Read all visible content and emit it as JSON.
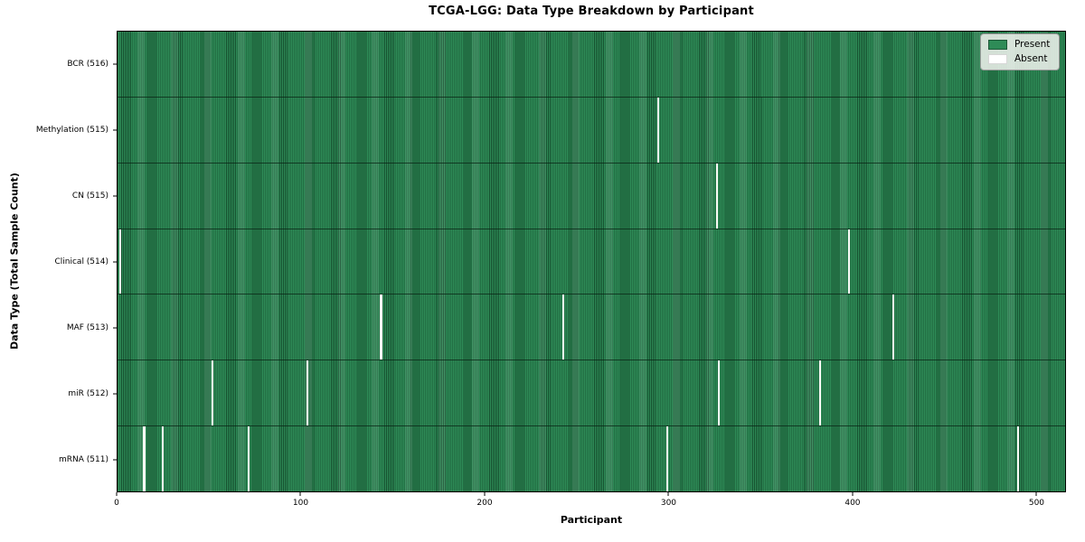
{
  "chart_data": {
    "type": "heatmap",
    "title": "TCGA-LGG: Data Type Breakdown by Participant",
    "xlabel": "Participant",
    "ylabel": "Data Type (Total Sample Count)",
    "x_ticks": [
      0,
      100,
      200,
      300,
      400,
      500
    ],
    "xlim": [
      0,
      516
    ],
    "n_participants": 516,
    "grid": false,
    "legend_position": "upper right",
    "legend": [
      {
        "label": "Present",
        "color": "#2e8b57"
      },
      {
        "label": "Absent",
        "color": "#ffffff"
      }
    ],
    "colors": {
      "present": "#2e8b57",
      "present_edge": "#16502f",
      "absent": "#fafaf7",
      "plot_border": "#000000",
      "legend_bg": "#edf0ec"
    },
    "rows": [
      {
        "label": "BCR (516)",
        "data_type": "BCR",
        "total_samples": 516,
        "absent_participants": []
      },
      {
        "label": "Methylation (515)",
        "data_type": "Methylation",
        "total_samples": 515,
        "absent_participants": [
          294
        ]
      },
      {
        "label": "CN (515)",
        "data_type": "CN",
        "total_samples": 515,
        "absent_participants": [
          326
        ]
      },
      {
        "label": "Clinical (514)",
        "data_type": "Clinical",
        "total_samples": 514,
        "absent_participants": [
          1,
          398
        ]
      },
      {
        "label": "MAF (513)",
        "data_type": "MAF",
        "total_samples": 513,
        "absent_participants": [
          143,
          242,
          422
        ]
      },
      {
        "label": "miR (512)",
        "data_type": "miR",
        "total_samples": 512,
        "absent_participants": [
          51,
          103,
          327,
          382
        ]
      },
      {
        "label": "mRNA (511)",
        "data_type": "mRNA",
        "total_samples": 511,
        "absent_participants": [
          14,
          24,
          71,
          299,
          490
        ]
      }
    ]
  }
}
